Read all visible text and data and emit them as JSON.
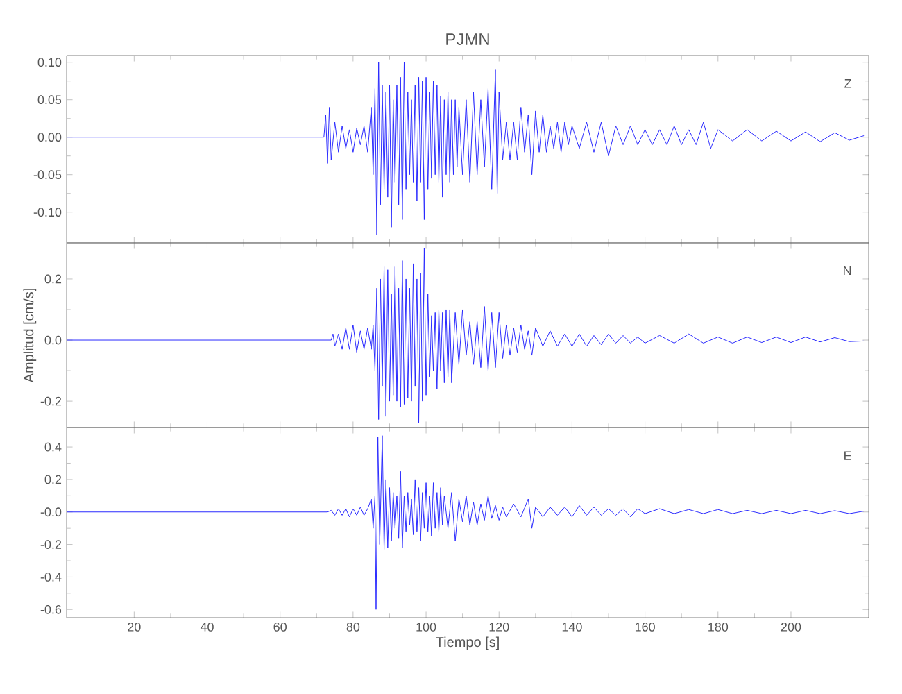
{
  "chart_data": [
    {
      "type": "line",
      "title": "PJMN",
      "annotations": [
        "Z"
      ],
      "color": "#2a2aff",
      "tick_labels": "y",
      "xlim": [
        1.5,
        221.3
      ],
      "xticks": [
        20,
        40,
        60,
        80,
        100,
        120,
        140,
        160,
        180,
        200
      ],
      "ylim": [
        -0.141,
        0.109
      ],
      "yticks": [
        {
          "value": 0.1,
          "label": "0.10"
        },
        {
          "value": 0.05,
          "label": "0.05"
        },
        {
          "value": 0,
          "label": "0.00"
        },
        {
          "value": -0.05,
          "label": "-0.05"
        },
        {
          "value": -0.1,
          "label": "-0.10"
        }
      ],
      "x": [
        1.5,
        72,
        72.5,
        73,
        73.5,
        74,
        75,
        76,
        77,
        78,
        79,
        80,
        81,
        82,
        83,
        84,
        85,
        85.5,
        86,
        86.5,
        87,
        87.5,
        88,
        88.5,
        89,
        89.5,
        90,
        90.5,
        91,
        91.5,
        92,
        92.5,
        93,
        93.5,
        94,
        94.5,
        95,
        95.5,
        96,
        96.5,
        97,
        97.5,
        98,
        98.5,
        99,
        99.5,
        100,
        100.5,
        101,
        101.5,
        102,
        102.5,
        103,
        103.5,
        104,
        104.5,
        105,
        105.5,
        106,
        106.5,
        107,
        107.5,
        108,
        108.5,
        109,
        110,
        111,
        112,
        113,
        114,
        115,
        116,
        117,
        118,
        119,
        119.5,
        120,
        121,
        122,
        123,
        124,
        125,
        126,
        127,
        128,
        129,
        130,
        131,
        132,
        133,
        134,
        135,
        136,
        137,
        138,
        139,
        140,
        142,
        144,
        146,
        148,
        150,
        152,
        154,
        156,
        158,
        160,
        162,
        164,
        166,
        168,
        170,
        172,
        174,
        176,
        178,
        180,
        184,
        188,
        192,
        196,
        200,
        204,
        208,
        212,
        216,
        220
      ],
      "values": [
        0,
        0,
        0.03,
        -0.035,
        0.04,
        -0.03,
        0.02,
        -0.02,
        0.015,
        -0.015,
        0.01,
        -0.02,
        0.012,
        -0.01,
        0.015,
        -0.02,
        0.04,
        -0.05,
        0.065,
        -0.13,
        0.1,
        -0.09,
        0.07,
        -0.07,
        0.06,
        -0.08,
        0.07,
        -0.12,
        0.05,
        -0.06,
        0.07,
        -0.09,
        0.08,
        -0.11,
        0.1,
        -0.07,
        0.06,
        -0.05,
        0.05,
        -0.06,
        0.07,
        -0.085,
        0.08,
        -0.06,
        0.075,
        -0.11,
        0.08,
        -0.07,
        0.06,
        -0.055,
        0.075,
        -0.05,
        0.07,
        -0.06,
        0.055,
        -0.08,
        0.05,
        -0.05,
        0.06,
        -0.06,
        0.05,
        -0.05,
        0.05,
        -0.04,
        0.04,
        -0.05,
        0.05,
        -0.06,
        0.06,
        -0.05,
        0.05,
        -0.04,
        0.065,
        -0.07,
        0.09,
        -0.075,
        0.06,
        -0.03,
        0.02,
        -0.03,
        0.02,
        -0.03,
        0.04,
        -0.02,
        0.03,
        -0.05,
        0.035,
        -0.02,
        0.03,
        -0.02,
        0.015,
        -0.015,
        0.02,
        -0.02,
        0.02,
        -0.01,
        0.015,
        -0.015,
        0.02,
        -0.02,
        0.02,
        -0.025,
        0.015,
        -0.01,
        0.015,
        -0.01,
        0.01,
        -0.01,
        0.01,
        -0.01,
        0.015,
        -0.01,
        0.01,
        -0.01,
        0.02,
        -0.015,
        0.01,
        -0.005,
        0.01,
        -0.005,
        0.008,
        -0.005,
        0.007,
        -0.006,
        0.006,
        -0.004,
        0.002
      ]
    },
    {
      "type": "line",
      "ylabel": "Amplitud [cm/s]",
      "annotations": [
        "N"
      ],
      "color": "#2a2aff",
      "tick_labels": "y",
      "xlim": [
        1.5,
        221.3
      ],
      "xticks": [
        20,
        40,
        60,
        80,
        100,
        120,
        140,
        160,
        180,
        200
      ],
      "ylim": [
        -0.286,
        0.318
      ],
      "yticks": [
        {
          "value": 0.2,
          "label": "0.2"
        },
        {
          "value": 0,
          "label": "0.0"
        },
        {
          "value": -0.2,
          "label": "-0.2"
        }
      ],
      "x": [
        1.5,
        74,
        74.5,
        75,
        76,
        77,
        78,
        79,
        80,
        81,
        82,
        83,
        84,
        85,
        85.5,
        86,
        86.5,
        87,
        87.5,
        88,
        88.5,
        89,
        89.5,
        90,
        90.5,
        91,
        91.5,
        92,
        92.5,
        93,
        93.5,
        94,
        94.5,
        95,
        95.5,
        96,
        96.5,
        97,
        97.5,
        98,
        98.5,
        99,
        99.5,
        100,
        100.5,
        101,
        101.5,
        102,
        102.5,
        103,
        103.5,
        104,
        104.5,
        105,
        105.5,
        106,
        106.5,
        107,
        108,
        109,
        110,
        111,
        112,
        113,
        114,
        115,
        116,
        117,
        118,
        119,
        120,
        121,
        122,
        123,
        124,
        125,
        126,
        127,
        128,
        129,
        130,
        132,
        134,
        136,
        138,
        140,
        142,
        144,
        146,
        148,
        150,
        152,
        154,
        156,
        158,
        160,
        164,
        168,
        172,
        176,
        180,
        184,
        188,
        192,
        196,
        200,
        204,
        208,
        212,
        216,
        220
      ],
      "values": [
        0,
        0,
        0.02,
        -0.02,
        0.02,
        -0.03,
        0.04,
        -0.03,
        0.05,
        -0.04,
        0.03,
        -0.03,
        0.04,
        -0.03,
        0.05,
        -0.1,
        0.17,
        -0.26,
        0.2,
        -0.15,
        0.24,
        -0.25,
        0.23,
        -0.2,
        0.15,
        -0.18,
        0.24,
        -0.2,
        0.17,
        -0.22,
        0.26,
        -0.21,
        0.2,
        -0.19,
        0.17,
        -0.2,
        0.25,
        -0.15,
        0.2,
        -0.27,
        0.22,
        -0.2,
        0.3,
        -0.18,
        0.15,
        -0.12,
        0.08,
        -0.1,
        0.09,
        -0.16,
        0.1,
        -0.1,
        0.09,
        -0.14,
        0.1,
        -0.12,
        0.1,
        -0.14,
        0.09,
        -0.08,
        0.1,
        -0.05,
        0.06,
        -0.08,
        0.06,
        -0.09,
        0.11,
        -0.1,
        0.09,
        -0.09,
        0.09,
        -0.06,
        0.05,
        -0.05,
        0.04,
        -0.04,
        0.05,
        -0.03,
        0.03,
        -0.05,
        0.04,
        -0.02,
        0.03,
        -0.02,
        0.02,
        -0.02,
        0.02,
        -0.02,
        0.015,
        -0.015,
        0.02,
        -0.01,
        0.015,
        -0.01,
        0.01,
        -0.01,
        0.015,
        -0.01,
        0.02,
        -0.01,
        0.01,
        -0.01,
        0.01,
        -0.008,
        0.01,
        -0.008,
        0.01,
        -0.006,
        0.008,
        -0.005,
        -0.003
      ]
    },
    {
      "type": "line",
      "xlabel": "Tiempo [s]",
      "annotations": [
        "E"
      ],
      "color": "#2a2aff",
      "xlim": [
        1.5,
        221.3
      ],
      "xticks": [
        20,
        40,
        60,
        80,
        100,
        120,
        140,
        160,
        180,
        200
      ],
      "ylim": [
        -0.65,
        0.52
      ],
      "yticks": [
        {
          "value": 0.4,
          "label": "0.4"
        },
        {
          "value": 0.2,
          "label": "0.2"
        },
        {
          "value": 0,
          "label": "-0.0"
        },
        {
          "value": -0.2,
          "label": "-0.2"
        },
        {
          "value": -0.4,
          "label": "-0.4"
        },
        {
          "value": -0.6,
          "label": "-0.6"
        }
      ],
      "x": [
        1.5,
        73,
        74,
        75,
        76,
        77,
        78,
        79,
        80,
        81,
        82,
        83,
        84,
        85,
        85.5,
        86,
        86.3,
        86.8,
        87.3,
        88,
        88.5,
        89,
        89.5,
        90,
        90.5,
        91,
        91.5,
        92,
        92.5,
        93,
        93.5,
        94,
        94.5,
        95,
        95.5,
        96,
        96.5,
        97,
        97.5,
        98,
        98.5,
        99,
        99.5,
        100,
        100.5,
        101,
        101.5,
        102,
        102.5,
        103,
        103.5,
        104,
        104.5,
        105,
        106,
        107,
        108,
        109,
        110,
        111,
        112,
        113,
        114,
        115,
        116,
        117,
        118,
        119,
        120,
        121,
        122,
        124,
        126,
        128,
        129,
        130,
        132,
        134,
        136,
        138,
        140,
        142,
        144,
        146,
        148,
        150,
        152,
        154,
        156,
        158,
        160,
        164,
        168,
        172,
        176,
        180,
        184,
        188,
        192,
        196,
        200,
        204,
        208,
        212,
        216,
        220
      ],
      "values": [
        0,
        0,
        0.01,
        -0.02,
        0.02,
        -0.02,
        0.02,
        -0.03,
        0.02,
        -0.02,
        0.03,
        -0.02,
        0.02,
        0.08,
        -0.1,
        0.1,
        -0.6,
        0.46,
        -0.2,
        0.47,
        -0.23,
        0.2,
        -0.22,
        0.15,
        -0.18,
        0.12,
        -0.1,
        0.1,
        -0.16,
        0.25,
        -0.22,
        0.1,
        -0.12,
        0.12,
        -0.08,
        0.08,
        -0.14,
        0.2,
        -0.12,
        0.15,
        -0.18,
        0.12,
        -0.1,
        0.18,
        -0.12,
        0.1,
        -0.15,
        0.18,
        -0.1,
        0.12,
        -0.12,
        0.15,
        -0.08,
        0.1,
        -0.1,
        0.12,
        -0.18,
        0.08,
        -0.06,
        0.1,
        -0.08,
        0.06,
        -0.08,
        0.05,
        -0.05,
        0.1,
        -0.04,
        0.04,
        -0.05,
        0.03,
        -0.03,
        0.05,
        -0.03,
        0.08,
        -0.1,
        0.03,
        -0.03,
        0.03,
        -0.02,
        0.03,
        -0.03,
        0.04,
        -0.02,
        0.03,
        -0.02,
        0.02,
        -0.02,
        0.02,
        -0.03,
        0.02,
        -0.01,
        0.02,
        -0.01,
        0.015,
        -0.01,
        0.015,
        -0.01,
        0.01,
        -0.01,
        0.01,
        -0.01,
        0.01,
        -0.01,
        0.008,
        -0.01,
        0.005
      ]
    }
  ]
}
